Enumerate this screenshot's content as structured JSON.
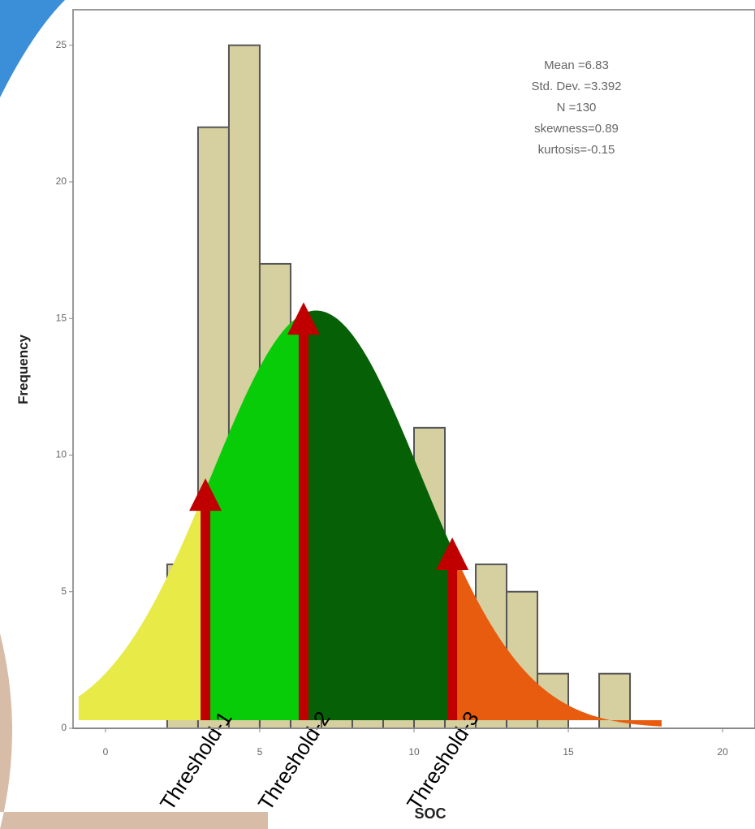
{
  "chart_data": {
    "type": "histogram",
    "x_label": "SOC",
    "y_label": "Frequency",
    "bins": [
      2,
      3,
      4,
      5,
      6,
      7,
      8,
      9,
      10,
      11,
      12,
      13,
      14,
      15,
      16,
      17,
      18
    ],
    "values": [
      6,
      22,
      25,
      17,
      10,
      8,
      7,
      5,
      11,
      4,
      6,
      5,
      2,
      0,
      2,
      0
    ],
    "color": "#d6cf9f",
    "xlim": [
      -1.05,
      21.05
    ],
    "ylim": [
      0,
      26.3
    ],
    "xticks": [
      0,
      5,
      10,
      15,
      20
    ],
    "yticks": [
      0,
      5,
      10,
      15,
      20,
      25
    ],
    "stats": [
      {
        "label": "Mean =",
        "value": 6.83
      },
      {
        "label": "Std. Dev. =",
        "value": 3.392
      },
      {
        "label": "N =",
        "value": 130
      },
      {
        "label": "skewness=",
        "value": 0.89
      },
      {
        "label": "kurtosis=",
        "value": -0.15
      }
    ],
    "thresholds": [
      {
        "label": "Threshold-1",
        "value": 3.24
      },
      {
        "label": "Threshold-2",
        "value": 6.42
      },
      {
        "label": "Threshold-3",
        "value": 11.24
      }
    ],
    "region_colors": [
      "#e8ea48",
      "#08cc08",
      "#066006",
      "#e85c10"
    ],
    "arrow_color": "#c00000"
  }
}
